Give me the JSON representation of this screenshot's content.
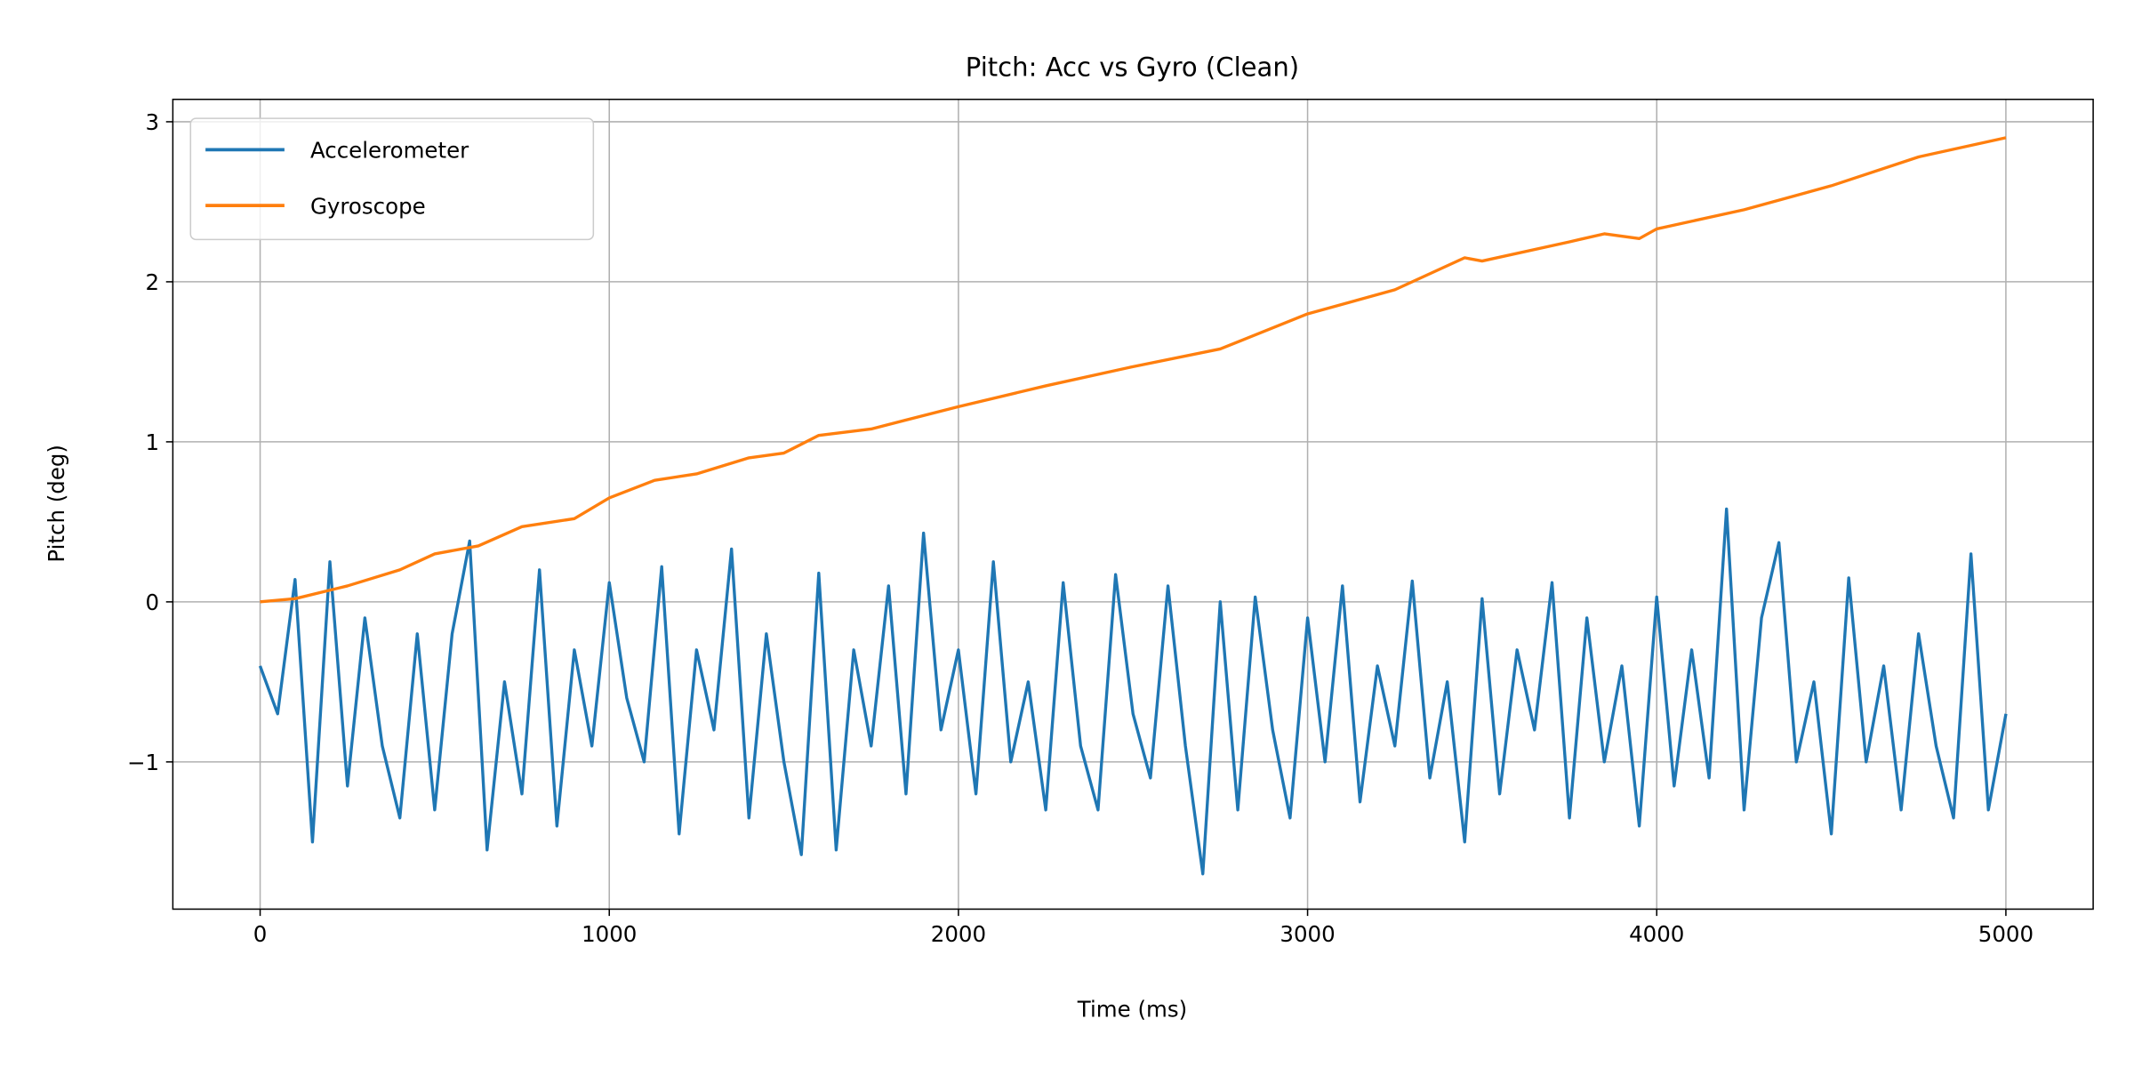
{
  "chart_data": {
    "type": "line",
    "title": "Pitch: Acc vs Gyro (Clean)",
    "xlabel": "Time (ms)",
    "ylabel": "Pitch (deg)",
    "xlim": [
      -250,
      5250
    ],
    "ylim": [
      -1.92,
      3.14
    ],
    "xticks": [
      0,
      1000,
      2000,
      3000,
      4000,
      5000
    ],
    "xtick_labels": [
      "0",
      "1000",
      "2000",
      "3000",
      "4000",
      "5000"
    ],
    "yticks": [
      -1,
      0,
      1,
      2,
      3
    ],
    "ytick_labels": [
      "−1",
      "0",
      "1",
      "2",
      "3"
    ],
    "grid": true,
    "legend_position": "top-left",
    "series": [
      {
        "name": "Accelerometer",
        "color": "#1f77b4",
        "x": [
          0,
          50,
          100,
          150,
          200,
          250,
          300,
          350,
          400,
          450,
          500,
          550,
          600,
          650,
          700,
          750,
          800,
          850,
          900,
          950,
          1000,
          1050,
          1100,
          1150,
          1200,
          1250,
          1300,
          1350,
          1400,
          1450,
          1500,
          1550,
          1600,
          1650,
          1700,
          1750,
          1800,
          1850,
          1900,
          1950,
          2000,
          2050,
          2100,
          2150,
          2200,
          2250,
          2300,
          2350,
          2400,
          2450,
          2500,
          2550,
          2600,
          2650,
          2700,
          2750,
          2800,
          2850,
          2900,
          2950,
          3000,
          3050,
          3100,
          3150,
          3200,
          3250,
          3300,
          3350,
          3400,
          3450,
          3500,
          3550,
          3600,
          3650,
          3700,
          3750,
          3800,
          3850,
          3900,
          3950,
          4000,
          4050,
          4100,
          4150,
          4200,
          4250,
          4300,
          4350,
          4400,
          4450,
          4500,
          4550,
          4600,
          4650,
          4700,
          4750,
          4800,
          4850,
          4900,
          4950,
          5000
        ],
        "y": [
          -0.4,
          -0.7,
          0.14,
          -1.5,
          0.25,
          -1.15,
          -0.1,
          -0.9,
          -1.35,
          -0.2,
          -1.3,
          -0.2,
          0.38,
          -1.55,
          -0.5,
          -1.2,
          0.2,
          -1.4,
          -0.3,
          -0.9,
          0.12,
          -0.6,
          -1.0,
          0.22,
          -1.45,
          -0.3,
          -0.8,
          0.33,
          -1.35,
          -0.2,
          -1.0,
          -1.58,
          0.18,
          -1.55,
          -0.3,
          -0.9,
          0.1,
          -1.2,
          0.43,
          -0.8,
          -0.3,
          -1.2,
          0.25,
          -1.0,
          -0.5,
          -1.3,
          0.12,
          -0.9,
          -1.3,
          0.17,
          -0.7,
          -1.1,
          0.1,
          -0.9,
          -1.7,
          0.0,
          -1.3,
          0.03,
          -0.8,
          -1.35,
          -0.1,
          -1.0,
          0.1,
          -1.25,
          -0.4,
          -0.9,
          0.13,
          -1.1,
          -0.5,
          -1.5,
          0.02,
          -1.2,
          -0.3,
          -0.8,
          0.12,
          -1.35,
          -0.1,
          -1.0,
          -0.4,
          -1.4,
          0.03,
          -1.15,
          -0.3,
          -1.1,
          0.58,
          -1.3,
          -0.1,
          0.37,
          -1.0,
          -0.5,
          -1.45,
          0.15,
          -1.0,
          -0.4,
          -1.3,
          -0.2,
          -0.9,
          -1.35,
          0.3,
          -1.3,
          -0.7
        ]
      },
      {
        "name": "Gyroscope",
        "color": "#ff7f0e",
        "x": [
          0,
          100,
          250,
          400,
          500,
          625,
          750,
          900,
          1000,
          1130,
          1250,
          1400,
          1500,
          1600,
          1750,
          2000,
          2250,
          2500,
          2750,
          3000,
          3250,
          3450,
          3500,
          3750,
          3850,
          3950,
          4000,
          4250,
          4500,
          4750,
          5000
        ],
        "y": [
          0,
          0.02,
          0.1,
          0.2,
          0.3,
          0.35,
          0.47,
          0.52,
          0.65,
          0.76,
          0.8,
          0.9,
          0.93,
          1.04,
          1.08,
          1.22,
          1.35,
          1.47,
          1.58,
          1.8,
          1.95,
          2.15,
          2.13,
          2.25,
          2.3,
          2.27,
          2.33,
          2.45,
          2.6,
          2.78,
          2.9
        ]
      }
    ]
  }
}
